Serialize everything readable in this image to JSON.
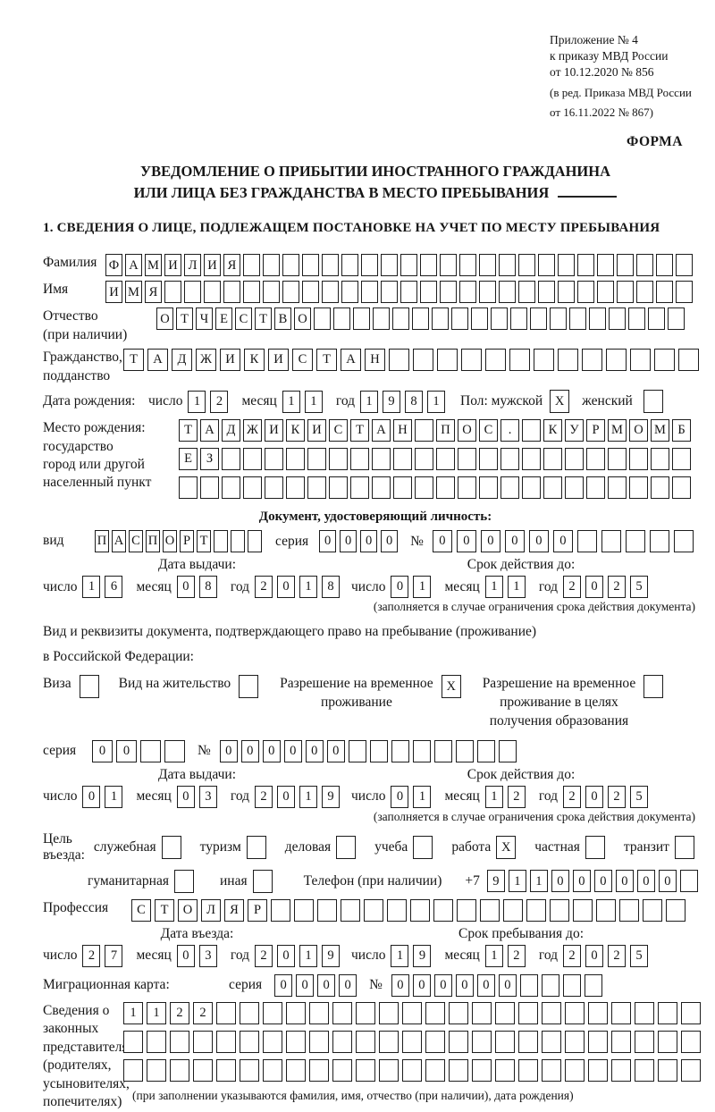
{
  "header": {
    "annex_lines": [
      "Приложение № 4",
      "к приказу МВД России",
      "от 10.12.2020 № 856"
    ],
    "edition_lines": [
      "(в ред. Приказа МВД России",
      "от 16.11.2022 № 867)"
    ],
    "form_label": "ФОРМА"
  },
  "title": {
    "line1": "УВЕДОМЛЕНИЕ О ПРИБЫТИИ ИНОСТРАННОГО ГРАЖДАНИНА",
    "line2": "ИЛИ ЛИЦА БЕЗ ГРАЖДАНСТВА В МЕСТО ПРЕБЫВАНИЯ"
  },
  "section1_heading": "1. СВЕДЕНИЯ О ЛИЦЕ, ПОДЛЕЖАЩЕМ ПОСТАНОВКЕ НА УЧЕТ ПО МЕСТУ ПРЕБЫВАНИЯ",
  "labels": {
    "surname": "Фамилия",
    "name": "Имя",
    "patronymic": "Отчество",
    "patronymic_note": "(при наличии)",
    "citizenship_1": "Гражданство,",
    "citizenship_2": "подданство",
    "birth_date": "Дата рождения:",
    "day": "число",
    "month": "месяц",
    "year": "год",
    "sex_male": "Пол: мужской",
    "sex_female": "женский",
    "birth_place": [
      "Место рождения:",
      "государство",
      "город или другой",
      "населенный пункт"
    ],
    "identity_doc_heading": "Документ, удостоверяющий личность:",
    "doc_type": "вид",
    "series": "серия",
    "number": "№",
    "issue_date": "Дата выдачи:",
    "valid_until": "Срок действия до:",
    "valid_note": "(заполняется в случае ограничения срока действия документа)",
    "residence_doc_line1": "Вид и реквизиты документа, подтверждающего право на пребывание (проживание)",
    "residence_doc_line2": "в Российской Федерации:",
    "visa": "Виза",
    "residence_permit": "Вид на жительство",
    "temp_residence": [
      "Разрешение на временное",
      "проживание"
    ],
    "temp_residence_edu": [
      "Разрешение на временное",
      "проживание в целях",
      "получения образования"
    ],
    "entry_purpose": "Цель въезда:",
    "purpose_official": "служебная",
    "purpose_tourism": "туризм",
    "purpose_business": "деловая",
    "purpose_study": "учеба",
    "purpose_work": "работа",
    "purpose_private": "частная",
    "purpose_transit": "транзит",
    "purpose_humanitarian": "гуманитарная",
    "purpose_other": "иная",
    "phone": "Телефон (при наличии)",
    "phone_prefix": "+7",
    "profession": "Профессия",
    "entry_date": "Дата въезда:",
    "stay_until": "Срок пребывания до:",
    "migration_card": "Миграционная карта:",
    "representatives": [
      "Сведения о",
      "законных",
      "представителях",
      "(родителях,",
      "усыновителях,",
      "попечителях)"
    ],
    "representatives_note": "(при заполнении указываются фамилия, имя, отчество (при наличии), дата рождения)"
  },
  "values": {
    "surname": "ФАМИЛИЯ",
    "name": "ИМЯ",
    "patronymic": "ОТЧЕСТВО",
    "citizenship": "ТАДЖИКИСТАН",
    "birth_day": "12",
    "birth_month": "11",
    "birth_year": "1981",
    "sex_male": "X",
    "sex_female": "",
    "birth_place_row1": "ТАДЖИКИСТАН ПОС. КУРМОМБ",
    "birth_place_row2": "ЕЗ",
    "birth_place_row3": "",
    "doc_type": "ПАСПОРТ",
    "doc_series": "0000",
    "doc_number": "000000",
    "doc_issue_day": "16",
    "doc_issue_month": "08",
    "doc_issue_year": "2018",
    "doc_valid_day": "01",
    "doc_valid_month": "11",
    "doc_valid_year": "2025",
    "visa": "",
    "residence_permit": "",
    "temp_residence": "X",
    "temp_residence_edu": "",
    "res_series": "00",
    "res_number": "000000",
    "res_issue_day": "01",
    "res_issue_month": "03",
    "res_issue_year": "2019",
    "res_valid_day": "01",
    "res_valid_month": "12",
    "res_valid_year": "2025",
    "purpose_official": "",
    "purpose_tourism": "",
    "purpose_business": "",
    "purpose_study": "",
    "purpose_work": "X",
    "purpose_private": "",
    "purpose_transit": "",
    "purpose_humanitarian": "",
    "purpose_other": "",
    "phone": "911000000",
    "profession": "СТОЛЯР",
    "entry_day": "27",
    "entry_month": "03",
    "entry_year": "2019",
    "stay_day": "19",
    "stay_month": "12",
    "stay_year": "2025",
    "mig_series": "0000",
    "mig_number": "000000",
    "rep_row1": "1122",
    "rep_row2": "",
    "rep_row3": ""
  }
}
